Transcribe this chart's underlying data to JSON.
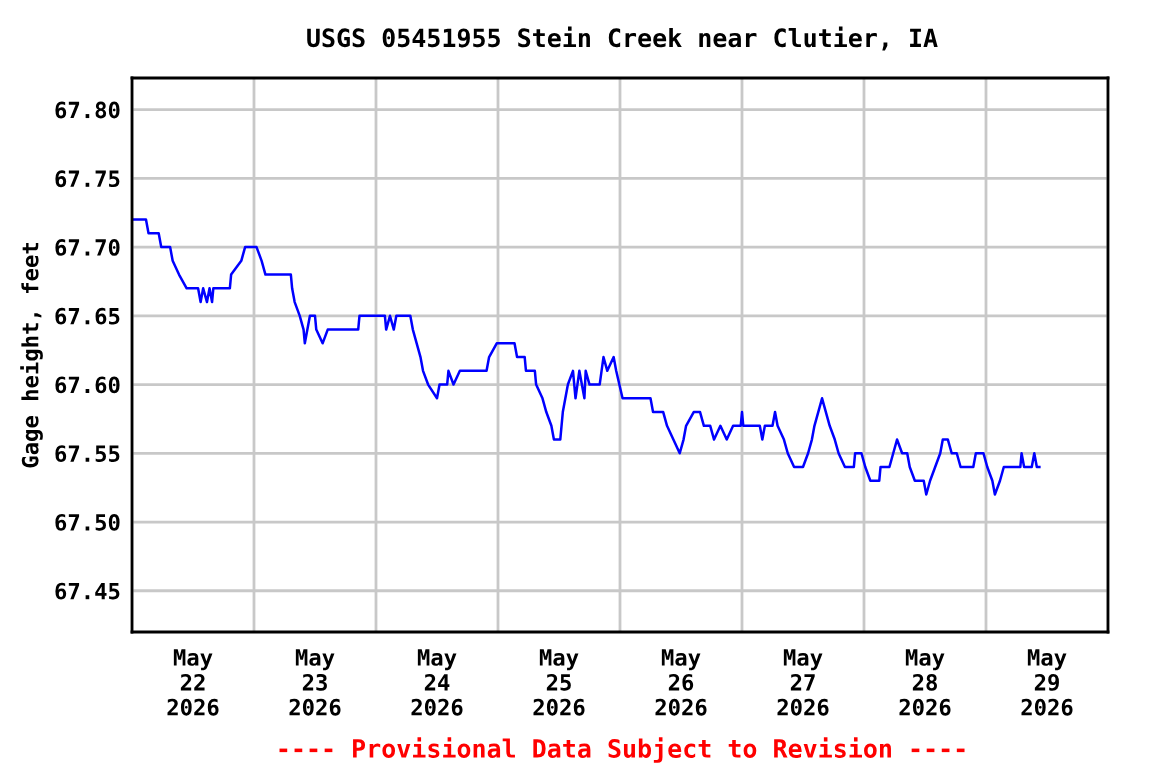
{
  "chart_data": {
    "type": "line",
    "title": "USGS 05451955 Stein Creek near Clutier, IA",
    "ylabel": "Gage height, feet",
    "annotations": [
      "---- Provisional Data Subject to Revision ----"
    ],
    "xlim": [
      "2026-05-22T00:00",
      "2026-05-30T00:00"
    ],
    "xticks": [
      {
        "value": "2026-05-22T00:00",
        "label": null
      },
      {
        "value": "2026-05-22T12:00",
        "label": "May\n22\n2026"
      },
      {
        "value": "2026-05-23T00:00",
        "label": null
      },
      {
        "value": "2026-05-23T12:00",
        "label": "May\n23\n2026"
      },
      {
        "value": "2026-05-24T00:00",
        "label": null
      },
      {
        "value": "2026-05-24T12:00",
        "label": "May\n24\n2026"
      },
      {
        "value": "2026-05-25T00:00",
        "label": null
      },
      {
        "value": "2026-05-25T12:00",
        "label": "May\n25\n2026"
      },
      {
        "value": "2026-05-26T00:00",
        "label": null
      },
      {
        "value": "2026-05-26T12:00",
        "label": "May\n26\n2026"
      },
      {
        "value": "2026-05-27T00:00",
        "label": null
      },
      {
        "value": "2026-05-27T12:00",
        "label": "May\n27\n2026"
      },
      {
        "value": "2026-05-28T00:00",
        "label": null
      },
      {
        "value": "2026-05-28T12:00",
        "label": "May\n28\n2026"
      },
      {
        "value": "2026-05-29T00:00",
        "label": null
      },
      {
        "value": "2026-05-29T12:00",
        "label": "May\n29\n2026"
      },
      {
        "value": "2026-05-30T00:00",
        "label": null
      }
    ],
    "ylim": [
      67.42,
      67.823
    ],
    "yticks": [
      67.45,
      {
        "value": 67.5,
        "label": "67.50"
      },
      67.55,
      {
        "value": 67.6,
        "label": "67.60"
      },
      67.65,
      {
        "value": 67.7,
        "label": "67.70"
      },
      67.75,
      {
        "value": 67.8,
        "label": "67.80"
      }
    ],
    "grid": true,
    "legend": false,
    "marker": "none",
    "line_style": "solid",
    "series": [
      {
        "color": "#0000ff",
        "x": [
          "2026-05-22T00:00",
          "2026-05-22T02:45",
          "2026-05-22T03:15",
          "2026-05-22T05:15",
          "2026-05-22T05:45",
          "2026-05-22T07:30",
          "2026-05-22T08:00",
          "2026-05-22T09:15",
          "2026-05-22T10:45",
          "2026-05-22T13:00",
          "2026-05-22T13:30",
          "2026-05-22T14:00",
          "2026-05-22T14:45",
          "2026-05-22T15:15",
          "2026-05-22T15:45",
          "2026-05-22T16:00",
          "2026-05-22T19:15",
          "2026-05-22T19:30",
          "2026-05-22T21:30",
          "2026-05-22T22:15",
          "2026-05-23T00:30",
          "2026-05-23T01:30",
          "2026-05-23T02:15",
          "2026-05-23T07:15",
          "2026-05-23T07:30",
          "2026-05-23T08:00",
          "2026-05-23T09:00",
          "2026-05-23T09:45",
          "2026-05-23T10:00",
          "2026-05-23T11:00",
          "2026-05-23T12:00",
          "2026-05-23T12:15",
          "2026-05-23T13:30",
          "2026-05-23T14:30",
          "2026-05-23T20:30",
          "2026-05-23T20:45",
          "2026-05-24T01:45",
          "2026-05-24T02:00",
          "2026-05-24T02:45",
          "2026-05-24T03:30",
          "2026-05-24T04:00",
          "2026-05-24T06:45",
          "2026-05-24T07:15",
          "2026-05-24T08:00",
          "2026-05-24T08:45",
          "2026-05-24T09:15",
          "2026-05-24T10:15",
          "2026-05-24T12:00",
          "2026-05-24T12:30",
          "2026-05-24T14:00",
          "2026-05-24T14:15",
          "2026-05-24T15:15",
          "2026-05-24T16:30",
          "2026-05-24T21:45",
          "2026-05-24T22:15",
          "2026-05-24T23:45",
          "2026-05-25T03:15",
          "2026-05-25T03:45",
          "2026-05-25T05:15",
          "2026-05-25T05:30",
          "2026-05-25T07:15",
          "2026-05-25T07:30",
          "2026-05-25T08:45",
          "2026-05-25T09:30",
          "2026-05-25T10:30",
          "2026-05-25T11:00",
          "2026-05-25T12:15",
          "2026-05-25T12:45",
          "2026-05-25T13:45",
          "2026-05-25T14:45",
          "2026-05-25T15:15",
          "2026-05-25T16:00",
          "2026-05-25T17:00",
          "2026-05-25T17:15",
          "2026-05-25T18:00",
          "2026-05-25T20:00",
          "2026-05-25T20:45",
          "2026-05-25T21:30",
          "2026-05-25T22:45",
          "2026-05-25T23:15",
          "2026-05-26T00:30",
          "2026-05-26T06:00",
          "2026-05-26T06:30",
          "2026-05-26T08:30",
          "2026-05-26T09:15",
          "2026-05-26T10:30",
          "2026-05-26T11:45",
          "2026-05-26T12:30",
          "2026-05-26T13:00",
          "2026-05-26T14:30",
          "2026-05-26T15:45",
          "2026-05-26T16:30",
          "2026-05-26T17:45",
          "2026-05-26T18:30",
          "2026-05-26T19:45",
          "2026-05-26T21:00",
          "2026-05-26T22:15",
          "2026-05-26T23:45",
          "2026-05-27T00:00",
          "2026-05-27T00:15",
          "2026-05-27T03:30",
          "2026-05-27T04:00",
          "2026-05-27T04:30",
          "2026-05-27T06:00",
          "2026-05-27T06:30",
          "2026-05-27T07:00",
          "2026-05-27T08:15",
          "2026-05-27T09:00",
          "2026-05-27T10:15",
          "2026-05-27T12:00",
          "2026-05-27T13:00",
          "2026-05-27T13:45",
          "2026-05-27T14:15",
          "2026-05-27T15:00",
          "2026-05-27T15:45",
          "2026-05-27T16:30",
          "2026-05-27T17:15",
          "2026-05-27T18:15",
          "2026-05-27T19:00",
          "2026-05-27T20:15",
          "2026-05-27T22:00",
          "2026-05-27T22:15",
          "2026-05-27T23:30",
          "2026-05-28T00:15",
          "2026-05-28T01:15",
          "2026-05-28T03:00",
          "2026-05-28T03:15",
          "2026-05-28T05:00",
          "2026-05-28T05:45",
          "2026-05-28T06:30",
          "2026-05-28T07:30",
          "2026-05-28T08:30",
          "2026-05-28T09:00",
          "2026-05-28T10:00",
          "2026-05-28T11:45",
          "2026-05-28T12:15",
          "2026-05-28T13:00",
          "2026-05-28T14:00",
          "2026-05-28T15:00",
          "2026-05-28T15:30",
          "2026-05-28T16:30",
          "2026-05-28T17:15",
          "2026-05-28T18:15",
          "2026-05-28T19:00",
          "2026-05-28T21:30",
          "2026-05-28T22:00",
          "2026-05-28T23:30",
          "2026-05-29T00:15",
          "2026-05-29T01:15",
          "2026-05-29T01:45",
          "2026-05-29T02:45",
          "2026-05-29T03:30",
          "2026-05-29T06:45",
          "2026-05-29T07:00",
          "2026-05-29T07:30",
          "2026-05-29T09:00",
          "2026-05-29T09:30",
          "2026-05-29T10:00",
          "2026-05-29T10:30"
        ],
        "values": [
          67.72,
          67.72,
          67.71,
          67.71,
          67.7,
          67.7,
          67.69,
          67.68,
          67.67,
          67.67,
          67.66,
          67.67,
          67.66,
          67.67,
          67.66,
          67.67,
          67.67,
          67.68,
          67.69,
          67.7,
          67.7,
          67.69,
          67.68,
          67.68,
          67.67,
          67.66,
          67.65,
          67.64,
          67.63,
          67.65,
          67.65,
          67.64,
          67.63,
          67.64,
          67.64,
          67.65,
          67.65,
          67.64,
          67.65,
          67.64,
          67.65,
          67.65,
          67.64,
          67.63,
          67.62,
          67.61,
          67.6,
          67.59,
          67.6,
          67.6,
          67.61,
          67.6,
          67.61,
          67.61,
          67.62,
          67.63,
          67.63,
          67.62,
          67.62,
          67.61,
          67.61,
          67.6,
          67.59,
          67.58,
          67.57,
          67.56,
          67.56,
          67.58,
          67.6,
          67.61,
          67.59,
          67.61,
          67.59,
          67.61,
          67.6,
          67.6,
          67.62,
          67.61,
          67.62,
          67.61,
          67.59,
          67.59,
          67.58,
          67.58,
          67.57,
          67.56,
          67.55,
          67.56,
          67.57,
          67.58,
          67.58,
          67.57,
          67.57,
          67.56,
          67.57,
          67.56,
          67.57,
          67.57,
          67.58,
          67.57,
          67.57,
          67.56,
          67.57,
          67.57,
          67.58,
          67.57,
          67.56,
          67.55,
          67.54,
          67.54,
          67.55,
          67.56,
          67.57,
          67.58,
          67.59,
          67.58,
          67.57,
          67.56,
          67.55,
          67.54,
          67.54,
          67.55,
          67.55,
          67.54,
          67.53,
          67.53,
          67.54,
          67.54,
          67.55,
          67.56,
          67.55,
          67.55,
          67.54,
          67.53,
          67.53,
          67.52,
          67.53,
          67.54,
          67.55,
          67.56,
          67.56,
          67.55,
          67.55,
          67.54,
          67.54,
          67.55,
          67.55,
          67.54,
          67.53,
          67.52,
          67.53,
          67.54,
          67.54,
          67.55,
          67.54,
          67.54,
          67.55,
          67.54,
          67.54
        ]
      }
    ]
  }
}
